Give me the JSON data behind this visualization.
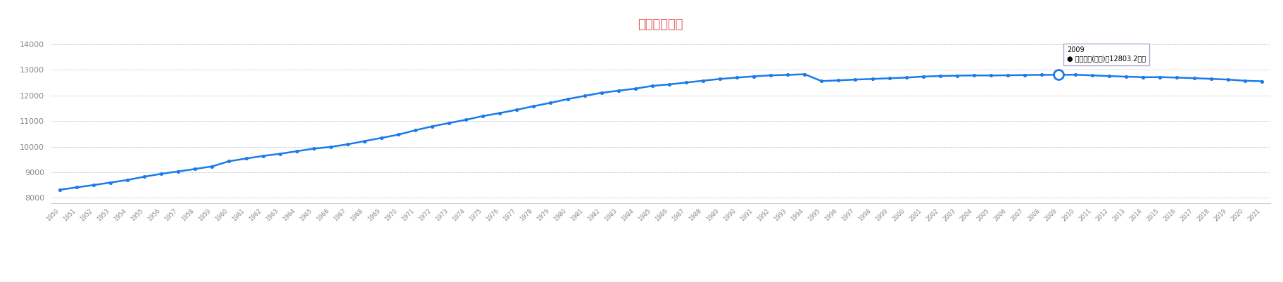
{
  "title": "日本人口曲线",
  "title_color": "#e05a5a",
  "legend_label": "人口总数(万人)",
  "line_color": "#1a7be8",
  "marker_color": "#1a7be8",
  "tooltip_year": 2009,
  "tooltip_value": 12803.2,
  "ylim": [
    7800,
    14400
  ],
  "yticks": [
    8000,
    9000,
    10000,
    11000,
    12000,
    13000,
    14000
  ],
  "background_color": "#ffffff",
  "grid_color": "#cccccc",
  "years": [
    1950,
    1951,
    1952,
    1953,
    1954,
    1955,
    1956,
    1957,
    1958,
    1959,
    1960,
    1961,
    1962,
    1963,
    1964,
    1965,
    1966,
    1967,
    1968,
    1969,
    1970,
    1971,
    1972,
    1973,
    1974,
    1975,
    1976,
    1977,
    1978,
    1979,
    1980,
    1981,
    1982,
    1983,
    1984,
    1985,
    1986,
    1987,
    1988,
    1989,
    1990,
    1991,
    1992,
    1993,
    1994,
    1995,
    1996,
    1997,
    1998,
    1999,
    2000,
    2001,
    2002,
    2003,
    2004,
    2005,
    2006,
    2007,
    2008,
    2009,
    2010,
    2011,
    2012,
    2013,
    2014,
    2015,
    2016,
    2017,
    2018,
    2019,
    2020,
    2021
  ],
  "population": [
    8320,
    8411,
    8502,
    8600,
    8700,
    8828,
    8941,
    9033,
    9130,
    9230,
    9430,
    9536,
    9637,
    9720,
    9822,
    9921,
    9990,
    10091,
    10216,
    10340,
    10467,
    10639,
    10791,
    10922,
    11049,
    11194,
    11310,
    11439,
    11579,
    11711,
    11855,
    11980,
    12100,
    12182,
    12262,
    12370,
    12427,
    12500,
    12572,
    12640,
    12693,
    12742,
    12781,
    12800,
    12824,
    12557,
    12586,
    12616,
    12641,
    12667,
    12693,
    12733,
    12754,
    12769,
    12779,
    12777,
    12783,
    12794,
    12802,
    12803,
    12806,
    12780,
    12752,
    12730,
    12708,
    12711,
    12694,
    12672,
    12644,
    12617,
    12571,
    12550
  ]
}
